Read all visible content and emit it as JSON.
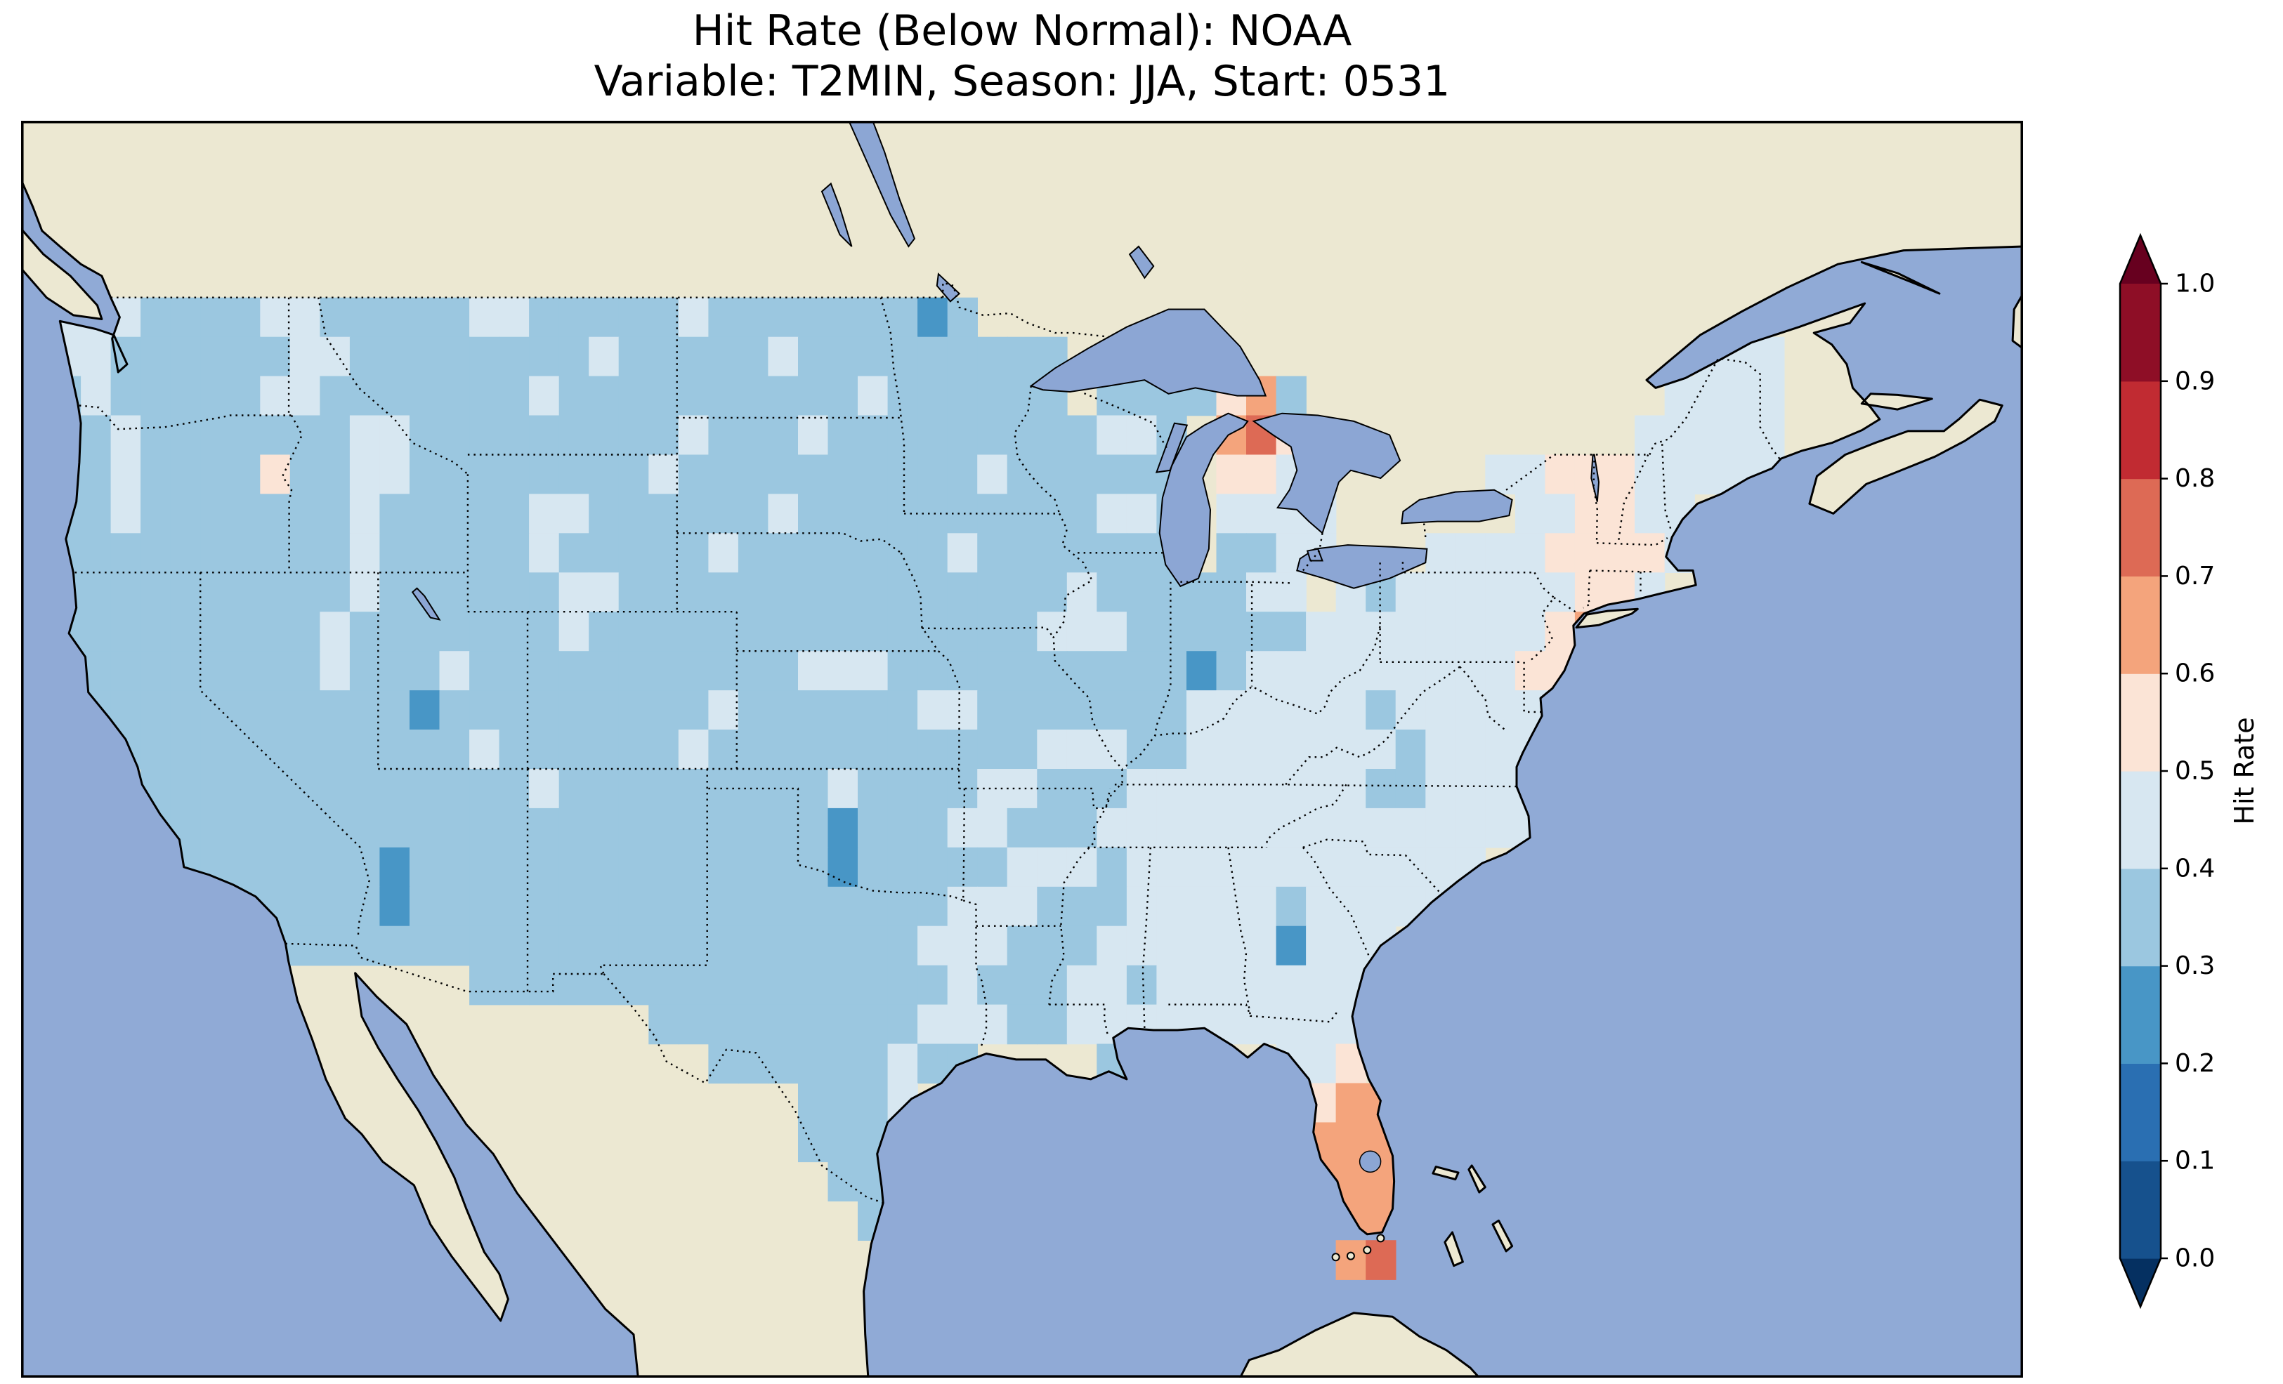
{
  "figure": {
    "title_line1": "Hit Rate (Below Normal): NOAA",
    "title_line2": "Variable: T2MIN, Season: JJA, Start: 0531"
  },
  "colorbar": {
    "label": "Hit Rate",
    "orientation": "vertical",
    "extend": "both",
    "tick_labels": [
      "0.0",
      "0.1",
      "0.2",
      "0.3",
      "0.4",
      "0.5",
      "0.6",
      "0.7",
      "0.8",
      "0.9",
      "1.0"
    ]
  },
  "map_colors": {
    "ocean": "#90aad6",
    "land": "#ece8d2",
    "lake": "#8ca6d4",
    "coastline": "#000000",
    "border": "#000000"
  },
  "chart_data": {
    "type": "heatmap",
    "title": "Hit Rate (Below Normal): NOAA",
    "subtitle": "Variable: T2MIN, Season: JJA, Start: 0531",
    "variable": "T2MIN",
    "season": "JJA",
    "start": "0531",
    "source_label": "NOAA",
    "colorbar_label": "Hit Rate",
    "value_boundaries": [
      0.0,
      0.1,
      0.2,
      0.3,
      0.4,
      0.5,
      0.6,
      0.7,
      0.8,
      0.9,
      1.0
    ],
    "bin_colors": [
      "#16518d",
      "#2a6fb2",
      "#4896c6",
      "#9bc7e0",
      "#d7e7f1",
      "#fbe4d6",
      "#f4a47c",
      "#dd6a55",
      "#c12b32",
      "#8e0e26"
    ],
    "under_color": "#053061",
    "over_color": "#67001f",
    "map_extent": {
      "lon_min": -126,
      "lon_max": -59,
      "lat_min": 21.5,
      "lat_max": 53.5
    },
    "grid": {
      "lon_origin": -125,
      "lat_origin": 49,
      "cell_size_deg": 1,
      "legend": {
        "a": "0.2-0.3",
        "b": "0.3-0.4",
        "c": "0.4-0.5",
        "d": "0.5-0.6",
        "e": "0.6-0.7",
        "f": "0.7-0.8"
      },
      "legend_color_index": {
        "a": 2,
        "b": 3,
        "c": 4,
        "d": 5,
        "e": 6,
        "f": 7
      },
      "rows": [
        "cccbbbbccbbbbbccbbbbbcbbbbbbbab............................",
        "ccbbbbbbccbbbbbbbbcbbbbbcbbbbbbbbb..b..................ccc.",
        "bcbbbbbccbbbbbbbcbbbbbbbbbbcbbbbbb.bbbbdeb............cccc.",
        "bbcbbbbbbbccbbbbbbbbbcbbbcbbbbbbbbbccb.efd...........ccccc.",
        "bbcbbbbdbbccbbbbbbbbcbbbbbbbbbbcbbbbbb.ddcc.....ccdddccccc.",
        "bbcbbbbbbbcbbbbbccbbbbbbcbbbbbbbbbbccb.cccc......ccddcc....",
        "bbbbbbbbbbcbbbbbcbbbbbcbbbbbbbcbbbbbbb.bbcc...ccccddddcc...",
        "bbbbbbbbbbcbbbbbbccbbbbbbbbbbbbbbbcbbbbbcc.cbccccccddc.....",
        "bbbbbbbbbcbbbbbbbcbbbbbbbbbbbbbbbcccbbbbbbccccccccde.......",
        ".bbbbbbbbcbbbcbbbbbbbbbbbcccbbbbbbbbbbabcccccccccdd........",
        ".bbbbbbbbbbbabbbbbbbbbcbbbbbbccbbbbbbbccccccbcccccc........",
        "..bbbbbbbbbbbbcbbbbbbcbbbbbbbbbbbcccbbcccccccbcccc.........",
        "...bbbbbbbbbbbbbcbbbbbbbbbcbbbbccbbbccccccccbbcccc.........",
        "...bbbbbbbbbbbbbbbbbbbbbbbabbbccbbbccccccccccccccc.........",
        "....bbbbbbbabbbbbbbbbbbbbbabbbbbcccbcccccccccccc...........",
        "......bbbbbabbbbbbbbbbbbbbbbbbcccbbbcccccbccccc............",
        ".......bbbbbbbbbbbbbbbbbbbbbbcccbbbccccccaccc..............",
        "..............bbbbbbbbbbbbbbbbcbbbccbccccccc...............",
        "....................bbbbbbbbbcccbbcccccccccc...............",
        "......................bbbbbbcbb....b.....ccd...............",
        ".........................bbbc.............dee..............",
        ".........................bbb..............eee..............",
        "..........................bb..............eee..............",
        "...........................b...............ee..............",
        "...........................................ef.............."
      ]
    },
    "summary": "Hit rates over CONUS mostly 0.3-0.5 (light blues); Florida peninsula, upper Lake Michigan shore and NYC coast 0.5-0.8 (oranges); isolated 0.2-0.3 cells in AZ, UT, OK, IN, MN and S-TX."
  }
}
